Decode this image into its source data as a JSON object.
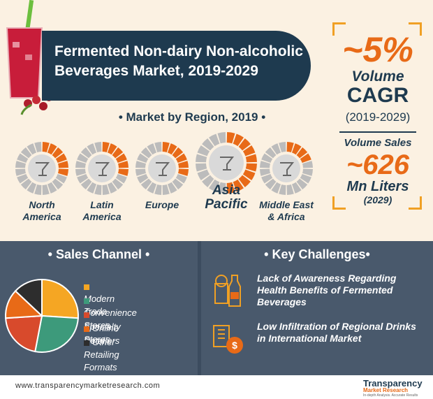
{
  "title": "Fermented Non-dairy Non-alcoholic Beverages Market, 2019-2029",
  "cagr": {
    "value": "~5%",
    "label1": "Volume",
    "label2": "CAGR",
    "period": "(2019-2029)"
  },
  "volume": {
    "label": "Volume Sales",
    "value": "~626",
    "unit": "Mn Liters",
    "year": "(2029)"
  },
  "region_section": {
    "title": "• Market by Region, 2019 •"
  },
  "colors": {
    "navy": "#1e3a4f",
    "orange": "#e86a17",
    "grey": "#bcbcbc",
    "yellow": "#f5a623",
    "green": "#3d9a7b",
    "red": "#d84a2c",
    "dark": "#2d2d2d"
  },
  "sales_channel": {
    "title": "• Sales Channel •"
  },
  "challenges": {
    "title": "• Key Challenges•",
    "items": [
      "Lack of Awareness Regarding Health Benefits of Fermented Beverages",
      "Low Infiltration of Regional Drinks in International Market"
    ]
  },
  "footer": {
    "url": "www.transparencymarketresearch.com",
    "logo": "Transparency",
    "logo_sub": "Market Research",
    "tagline": "In-depth Analysis. Accurate Results"
  },
  "chart_data": [
    {
      "type": "radial-segments",
      "title": "Market by Region, 2019",
      "total_segments": 20,
      "categories": [
        "North America",
        "Latin America",
        "Europe",
        "Asia Pacific",
        "Middle East & Africa"
      ],
      "label_lines": [
        [
          "North",
          "America"
        ],
        [
          "Latin",
          "America"
        ],
        [
          "Europe"
        ],
        [
          "Asia",
          "Pacific"
        ],
        [
          "Middle East",
          "& Africa"
        ]
      ],
      "highlighted_segments": [
        6,
        6,
        6,
        10,
        4
      ],
      "icons": [
        "cocktail-glass-icon",
        "wine-glass-icon",
        "martini-glass-icon",
        "juice-glass-icon",
        "beer-glass-icon"
      ]
    },
    {
      "type": "pie",
      "title": "Sales Channel",
      "categories": [
        "Modern Trade",
        "Convenience Stores",
        "Specialty Stores",
        "Online Retailers",
        "Other Retailing Formats"
      ],
      "values": [
        26,
        27,
        21,
        13,
        13
      ]
    }
  ]
}
